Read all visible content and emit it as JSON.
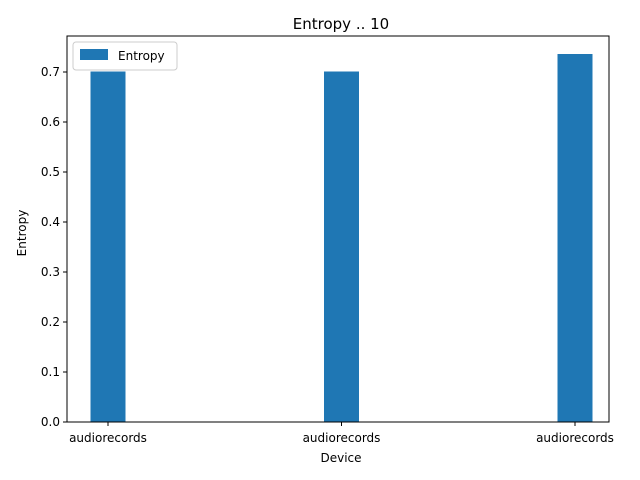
{
  "chart_data": {
    "type": "bar",
    "title": "Entropy .. 10",
    "xlabel": "Device",
    "ylabel": "Entropy",
    "categories": [
      "audiorecords",
      "audiorecords",
      "audiorecords"
    ],
    "series": [
      {
        "name": "Entropy",
        "values": [
          0.701,
          0.701,
          0.736
        ]
      }
    ],
    "ylim": [
      0,
      0.772
    ],
    "yticks": [
      0.0,
      0.1,
      0.2,
      0.3,
      0.4,
      0.5,
      0.6,
      0.7
    ],
    "ytick_labels": [
      "0.0",
      "0.1",
      "0.2",
      "0.3",
      "0.4",
      "0.5",
      "0.6",
      "0.7"
    ],
    "bar_color": "#1f77b4",
    "grid": false,
    "legend_position": "top-left"
  }
}
